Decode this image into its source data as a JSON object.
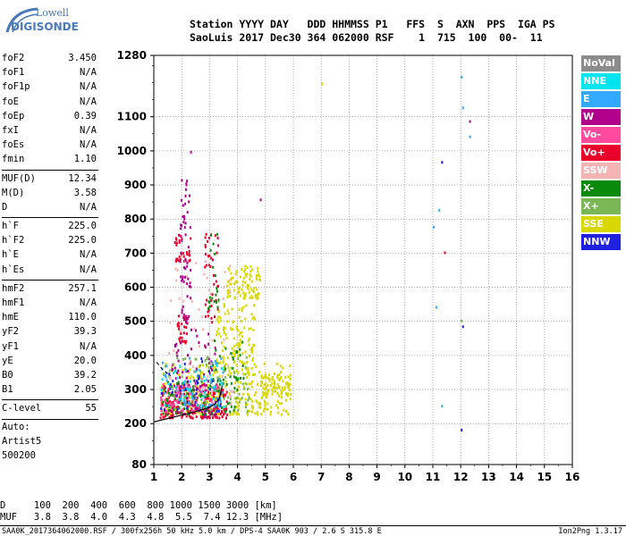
{
  "logo": {
    "line1": "Lowell",
    "line2": "DIGISONDE"
  },
  "header": {
    "line1": "Station YYYY DAY   DDD HHMMSS P1   FFS  S  AXN  PPS  IGA PS",
    "line2": "SaoLuis 2017 Dec30 364 062000 RSF    1  715  100  00-  11"
  },
  "params": [
    {
      "label": "foF2",
      "value": "3.450"
    },
    {
      "label": "foF1",
      "value": "N/A"
    },
    {
      "label": "foF1p",
      "value": "N/A"
    },
    {
      "label": "foE",
      "value": "N/A"
    },
    {
      "label": "foEp",
      "value": "0.39"
    },
    {
      "label": "fxI",
      "value": "N/A"
    },
    {
      "label": "foEs",
      "value": "N/A"
    },
    {
      "label": "fmin",
      "value": "1.10"
    },
    {
      "sep": true
    },
    {
      "label": "MUF(D)",
      "value": "12.34"
    },
    {
      "label": "M(D)",
      "value": "3.58"
    },
    {
      "label": "D",
      "value": "N/A"
    },
    {
      "sep": true
    },
    {
      "label": "h`F",
      "value": "225.0"
    },
    {
      "label": "h`F2",
      "value": "225.0"
    },
    {
      "label": "h`E",
      "value": "N/A"
    },
    {
      "label": "h`Es",
      "value": "N/A"
    },
    {
      "sep": true
    },
    {
      "label": "hmF2",
      "value": "257.1"
    },
    {
      "label": "hmF1",
      "value": "N/A"
    },
    {
      "label": "hmE",
      "value": "110.0"
    },
    {
      "label": "yF2",
      "value": "39.3"
    },
    {
      "label": "yF1",
      "value": "N/A"
    },
    {
      "label": "yE",
      "value": "20.0"
    },
    {
      "label": "B0",
      "value": "39.2"
    },
    {
      "label": "B1",
      "value": "2.05"
    },
    {
      "sep": true
    },
    {
      "label": "C-level",
      "value": "55"
    },
    {
      "sep": true
    }
  ],
  "scaler_info": [
    "Auto:",
    "Artist5",
    "500200"
  ],
  "legend": [
    {
      "label": "NoVal",
      "color": "#8c8c8c"
    },
    {
      "label": "NNE",
      "color": "#00e5f0"
    },
    {
      "label": "E",
      "color": "#33aaff"
    },
    {
      "label": "W",
      "color": "#b0008c"
    },
    {
      "label": "Vo-",
      "color": "#ff4aa0"
    },
    {
      "label": "Vo+",
      "color": "#e8002a"
    },
    {
      "label": "SSW",
      "color": "#f4b4b4"
    },
    {
      "label": "X-",
      "color": "#0a8a0a"
    },
    {
      "label": "X+",
      "color": "#7ab856"
    },
    {
      "label": "SSE",
      "color": "#d8d800"
    },
    {
      "label": "NNW",
      "color": "#2020e0"
    }
  ],
  "chart_data": {
    "type": "scatter",
    "xlabel": "",
    "ylabel": "",
    "xlim": [
      1,
      16
    ],
    "ylim": [
      80,
      1280
    ],
    "x_ticks": [
      1,
      2,
      3,
      4,
      5,
      6,
      7,
      8,
      9,
      10,
      11,
      12,
      13,
      14,
      15,
      16
    ],
    "y_ticks": [
      80,
      200,
      300,
      400,
      500,
      600,
      700,
      800,
      900,
      1000,
      1100,
      1280
    ],
    "grid": true,
    "trace": {
      "name": "",
      "points": [
        [
          1.0,
          205
        ],
        [
          1.5,
          215
        ],
        [
          2.0,
          225
        ],
        [
          2.5,
          235
        ],
        [
          3.0,
          248
        ],
        [
          3.2,
          258
        ],
        [
          3.35,
          275
        ],
        [
          3.45,
          310
        ]
      ]
    },
    "dashed_trace": {
      "name": "",
      "points": [
        [
          1.1,
          380
        ],
        [
          1.3,
          360
        ],
        [
          1.6,
          340
        ]
      ]
    },
    "outliers": [
      {
        "x": 7.0,
        "y": 1200,
        "series": "SSE"
      },
      {
        "x": 11.3,
        "y": 970,
        "series": "NNW"
      },
      {
        "x": 11.2,
        "y": 830,
        "series": "E"
      },
      {
        "x": 11.0,
        "y": 780,
        "series": "E"
      },
      {
        "x": 11.4,
        "y": 705,
        "series": "Vo+"
      },
      {
        "x": 11.1,
        "y": 545,
        "series": "E"
      },
      {
        "x": 11.3,
        "y": 255,
        "series": "E"
      },
      {
        "x": 12.0,
        "y": 1220,
        "series": "E"
      },
      {
        "x": 12.05,
        "y": 1130,
        "series": "E"
      },
      {
        "x": 12.3,
        "y": 1090,
        "series": "W"
      },
      {
        "x": 12.3,
        "y": 1045,
        "series": "E"
      },
      {
        "x": 12.0,
        "y": 505,
        "series": "X+"
      },
      {
        "x": 12.05,
        "y": 488,
        "series": "NNW"
      },
      {
        "x": 12.0,
        "y": 185,
        "series": "NNW"
      },
      {
        "x": 4.8,
        "y": 860,
        "series": "W"
      },
      {
        "x": 2.3,
        "y": 1000,
        "series": "W"
      }
    ],
    "clusters": [
      {
        "series": "SSE",
        "x": [
          1.2,
          5.9
        ],
        "y": [
          230,
          380
        ],
        "n": 300
      },
      {
        "series": "SSE",
        "x": [
          3.6,
          4.8
        ],
        "y": [
          570,
          670
        ],
        "n": 90
      },
      {
        "series": "SSE",
        "x": [
          3.2,
          4.6
        ],
        "y": [
          380,
          560
        ],
        "n": 110
      },
      {
        "series": "SSE",
        "x": [
          4.8,
          5.9
        ],
        "y": [
          290,
          350
        ],
        "n": 60
      },
      {
        "series": "Vo+",
        "x": [
          1.2,
          3.6
        ],
        "y": [
          220,
          320
        ],
        "n": 200
      },
      {
        "series": "Vo+",
        "x": [
          1.7,
          2.3
        ],
        "y": [
          680,
          760
        ],
        "n": 30
      },
      {
        "series": "Vo+",
        "x": [
          1.8,
          2.2
        ],
        "y": [
          440,
          520
        ],
        "n": 30
      },
      {
        "series": "Vo-",
        "x": [
          1.2,
          3.4
        ],
        "y": [
          240,
          320
        ],
        "n": 120
      },
      {
        "series": "W",
        "x": [
          1.6,
          3.2
        ],
        "y": [
          220,
          480
        ],
        "n": 90
      },
      {
        "series": "X-",
        "x": [
          1.3,
          4.0
        ],
        "y": [
          230,
          330
        ],
        "n": 90
      },
      {
        "series": "X-",
        "x": [
          3.0,
          4.2
        ],
        "y": [
          330,
          450
        ],
        "n": 30
      },
      {
        "series": "X+",
        "x": [
          1.3,
          4.4
        ],
        "y": [
          240,
          400
        ],
        "n": 80
      },
      {
        "series": "E",
        "x": [
          1.2,
          3.5
        ],
        "y": [
          250,
          400
        ],
        "n": 60
      },
      {
        "series": "NNE",
        "x": [
          1.2,
          3.5
        ],
        "y": [
          250,
          380
        ],
        "n": 40
      },
      {
        "series": "SSW",
        "x": [
          1.5,
          3.8
        ],
        "y": [
          260,
          700
        ],
        "n": 60
      },
      {
        "series": "NNW",
        "x": [
          1.2,
          3.4
        ],
        "y": [
          240,
          400
        ],
        "n": 40
      },
      {
        "series": "W",
        "x": [
          1.9,
          2.3
        ],
        "y": [
          500,
          920
        ],
        "n": 60
      },
      {
        "series": "Vo+",
        "x": [
          2.8,
          3.3
        ],
        "y": [
          500,
          780
        ],
        "n": 40
      },
      {
        "series": "X-",
        "x": [
          2.9,
          3.3
        ],
        "y": [
          540,
          760
        ],
        "n": 20
      }
    ]
  },
  "footer": {
    "d_row": "D     100  200  400  600  800 1000 1500 3000 [km]",
    "muf_row": "MUF   3.8  3.8  4.0  4.3  4.8  5.5  7.4 12.3 [MHz]",
    "file_line": "SAA0K_2017364062000.RSF / 300fx256h 50 kHz 5.0 km / DPS-4 SAA0K 903 / 2.6 S 315.8 E",
    "version": "Ion2Png 1.3.17"
  }
}
